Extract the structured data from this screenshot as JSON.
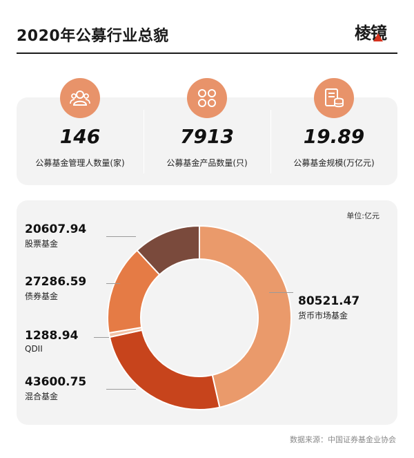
{
  "header": {
    "title": "2020年公募行业总貌",
    "logo_text": "棱镜"
  },
  "colors": {
    "accent": "#e8936a",
    "money": "#ea9a6b",
    "mixed": "#c7441c",
    "qdii": "#f2c2a6",
    "bond": "#e57b45",
    "stock": "#7a4a3c"
  },
  "stats": [
    {
      "icon": "people-icon",
      "value": "146",
      "label": "公募基金管理人数量(家)"
    },
    {
      "icon": "clover-icon",
      "value": "7913",
      "label": "公募基金产品数量(只)"
    },
    {
      "icon": "coins-document-icon",
      "value": "19.89",
      "label": "公募基金规模(万亿元)"
    }
  ],
  "chart_data": {
    "type": "pie",
    "unit": "单位:亿元",
    "categories": [
      "货币市场基金",
      "混合基金",
      "QDII",
      "债券基金",
      "股票基金"
    ],
    "values": [
      80521.47,
      43600.75,
      1288.94,
      27286.59,
      20607.94
    ],
    "value_labels": [
      "80521.47",
      "43600.75",
      "1288.94",
      "27286.59",
      "20607.94"
    ]
  },
  "footer": {
    "source": "数据来源：中国证券基金业协会"
  }
}
